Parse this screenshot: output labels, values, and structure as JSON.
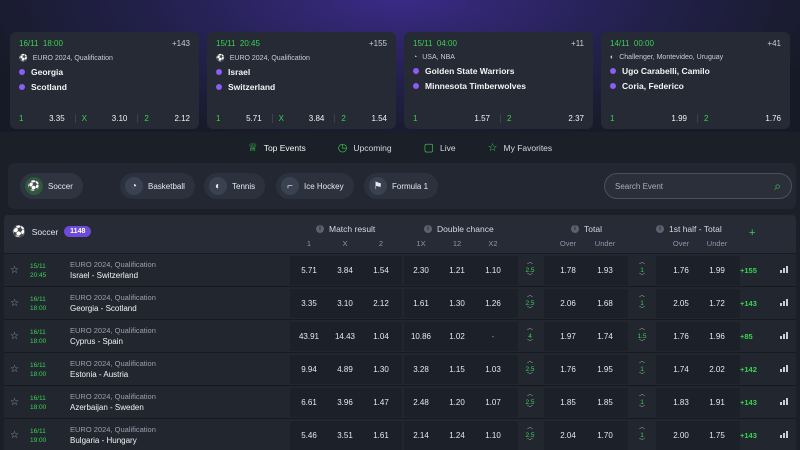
{
  "featured": [
    {
      "date": "16/11",
      "time": "18:00",
      "count": "+143",
      "league": "EURO 2024, Qualification",
      "team1": "Georgia",
      "team2": "Scotland",
      "odds": [
        {
          "label": "1",
          "value": "3.35"
        },
        {
          "label": "X",
          "value": "3.10"
        },
        {
          "label": "2",
          "value": "2.12"
        }
      ]
    },
    {
      "date": "15/11",
      "time": "20:45",
      "count": "+155",
      "league": "EURO 2024, Qualification",
      "team1": "Israel",
      "team2": "Switzerland",
      "odds": [
        {
          "label": "1",
          "value": "5.71"
        },
        {
          "label": "X",
          "value": "3.84"
        },
        {
          "label": "2",
          "value": "1.54"
        }
      ]
    },
    {
      "date": "15/11",
      "time": "04:00",
      "count": "+11",
      "league": "USA, NBA",
      "team1": "Golden State Warriors",
      "team2": "Minnesota Timberwolves",
      "odds": [
        {
          "label": "1",
          "value": "1.57"
        },
        {
          "label": "2",
          "value": "2.37"
        }
      ]
    },
    {
      "date": "14/11",
      "time": "00:00",
      "count": "+41",
      "league": "Challenger, Montevideo, Uruguay",
      "team1": "Ugo Carabelli, Camilo",
      "team2": "Coria, Federico",
      "odds": [
        {
          "label": "1",
          "value": "1.99"
        },
        {
          "label": "2",
          "value": "1.76"
        }
      ]
    }
  ],
  "nav": {
    "top_events": "Top Events",
    "upcoming": "Upcoming",
    "live": "Live",
    "favorites": "My Favorites"
  },
  "sports": {
    "soccer": "Soccer",
    "basketball": "Basketball",
    "tennis": "Tennis",
    "ice_hockey": "Ice Hockey",
    "formula1": "Formula 1"
  },
  "search": {
    "placeholder": "Search Event"
  },
  "table": {
    "sport": "Soccer",
    "count": "1148",
    "groups": {
      "match_result": "Match result",
      "double_chance": "Double chance",
      "total": "Total",
      "half_total": "1st half - Total"
    },
    "subs": {
      "one": "1",
      "x": "X",
      "two": "2",
      "onex": "1X",
      "twelve": "12",
      "x2": "X2",
      "over": "Over",
      "under": "Under",
      "over2": "Over",
      "under2": "Under"
    },
    "plus": "+",
    "rows": [
      {
        "date": "15/11",
        "time": "20:45",
        "league": "EURO 2024, Qualification",
        "teams": "Israel  -  Switzerland",
        "mr": [
          "5.71",
          "3.84",
          "1.54"
        ],
        "dc": [
          "2.30",
          "1.21",
          "1.10"
        ],
        "tl": "2.5",
        "tot": [
          "1.78",
          "1.93"
        ],
        "hl": "1",
        "half": [
          "1.76",
          "1.99"
        ],
        "more": "+155"
      },
      {
        "date": "16/11",
        "time": "18:00",
        "league": "EURO 2024, Qualification",
        "teams": "Georgia  -  Scotland",
        "mr": [
          "3.35",
          "3.10",
          "2.12"
        ],
        "dc": [
          "1.61",
          "1.30",
          "1.26"
        ],
        "tl": "2.5",
        "tot": [
          "2.06",
          "1.68"
        ],
        "hl": "1",
        "half": [
          "2.05",
          "1.72"
        ],
        "more": "+143"
      },
      {
        "date": "16/11",
        "time": "18:00",
        "league": "EURO 2024, Qualification",
        "teams": "Cyprus  -  Spain",
        "mr": [
          "43.91",
          "14.43",
          "1.04"
        ],
        "dc": [
          "10.86",
          "1.02",
          "-"
        ],
        "tl": "4",
        "tot": [
          "1.97",
          "1.74"
        ],
        "hl": "1.5",
        "half": [
          "1.76",
          "1.96"
        ],
        "more": "+85"
      },
      {
        "date": "16/11",
        "time": "18:00",
        "league": "EURO 2024, Qualification",
        "teams": "Estonia  -  Austria",
        "mr": [
          "9.94",
          "4.89",
          "1.30"
        ],
        "dc": [
          "3.28",
          "1.15",
          "1.03"
        ],
        "tl": "2.5",
        "tot": [
          "1.76",
          "1.95"
        ],
        "hl": "1",
        "half": [
          "1.74",
          "2.02"
        ],
        "more": "+142"
      },
      {
        "date": "16/11",
        "time": "18:00",
        "league": "EURO 2024, Qualification",
        "teams": "Azerbaijan  -  Sweden",
        "mr": [
          "6.61",
          "3.96",
          "1.47"
        ],
        "dc": [
          "2.48",
          "1.20",
          "1.07"
        ],
        "tl": "2.5",
        "tot": [
          "1.85",
          "1.85"
        ],
        "hl": "1",
        "half": [
          "1.83",
          "1.91"
        ],
        "more": "+143"
      },
      {
        "date": "16/11",
        "time": "19:00",
        "league": "EURO 2024, Qualification",
        "teams": "Bulgaria  -  Hungary",
        "mr": [
          "5.46",
          "3.51",
          "1.61"
        ],
        "dc": [
          "2.14",
          "1.24",
          "1.10"
        ],
        "tl": "2.5",
        "tot": [
          "2.04",
          "1.70"
        ],
        "hl": "1",
        "half": [
          "2.00",
          "1.75"
        ],
        "more": "+143"
      }
    ]
  },
  "colors": {
    "accent_green": "#39d353",
    "accent_purple": "#8b5cf6",
    "badge": "#6d4ad8",
    "background": "#1b1f27"
  }
}
